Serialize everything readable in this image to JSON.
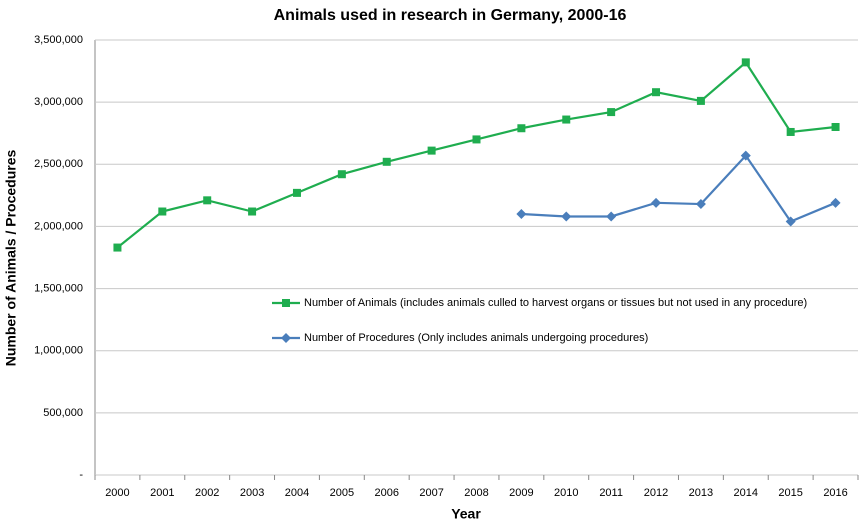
{
  "chart_data": {
    "type": "line",
    "title": "Animals used in research in Germany, 2000-16",
    "x_label": "Year",
    "y_label": "Number of Animals / Procedures",
    "categories": [
      "2000",
      "2001",
      "2002",
      "2003",
      "2004",
      "2005",
      "2006",
      "2007",
      "2008",
      "2009",
      "2010",
      "2011",
      "2012",
      "2013",
      "2014",
      "2015",
      "2016"
    ],
    "series": [
      {
        "name": "Number of Animals (includes animals culled to harvest organs or tissues but not used in any procedure)",
        "color": "#1fad4f",
        "marker": "square",
        "values": [
          1830000,
          2120000,
          2210000,
          2120000,
          2270000,
          2420000,
          2520000,
          2610000,
          2700000,
          2790000,
          2860000,
          2920000,
          3080000,
          3010000,
          3320000,
          2760000,
          2800000
        ]
      },
      {
        "name": "Number of Procedures (Only includes animals undergoing procedures)",
        "color": "#4a7ebb",
        "marker": "diamond",
        "values": [
          null,
          null,
          null,
          null,
          null,
          null,
          null,
          null,
          null,
          2100000,
          2080000,
          2080000,
          2190000,
          2180000,
          2570000,
          2040000,
          2190000
        ]
      }
    ],
    "ylim": [
      0,
      3500000
    ],
    "yticks": [
      {
        "value": 0,
        "label": "-"
      },
      {
        "value": 500000,
        "label": "500,000"
      },
      {
        "value": 1000000,
        "label": "1,000,000"
      },
      {
        "value": 1500000,
        "label": "1,500,000"
      },
      {
        "value": 2000000,
        "label": "2,000,000"
      },
      {
        "value": 2500000,
        "label": "2,500,000"
      },
      {
        "value": 3000000,
        "label": "3,000,000"
      },
      {
        "value": 3500000,
        "label": "3,500,000"
      }
    ],
    "grid": true
  }
}
